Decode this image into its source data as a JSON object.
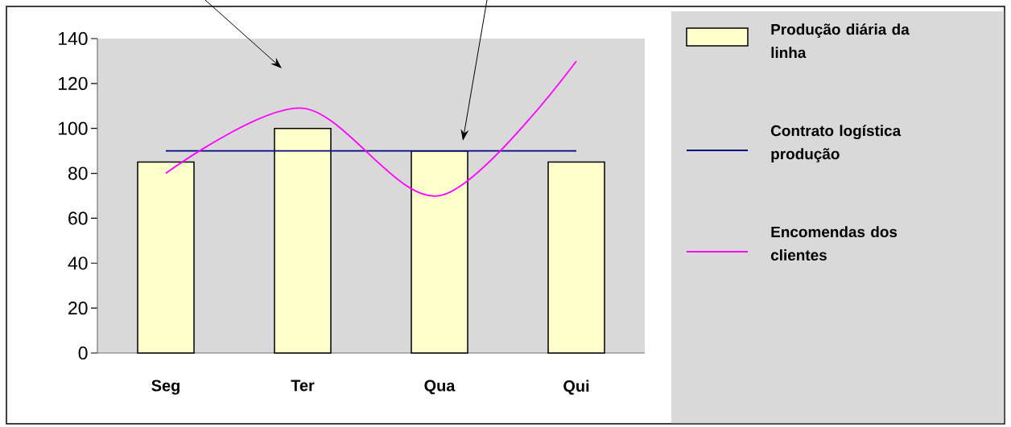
{
  "chart_data": {
    "type": "bar",
    "categories": [
      "Seg",
      "Ter",
      "Qua",
      "Qui"
    ],
    "series": [
      {
        "name": "Produção diária da linha",
        "color": "#ffffcc",
        "values": [
          85,
          100,
          90,
          85
        ]
      },
      {
        "name": "Contrato logística produção",
        "type": "line",
        "color": "#000080",
        "values": [
          90,
          90,
          90,
          90
        ]
      },
      {
        "name": "Encomendas dos clientes",
        "type": "line",
        "color": "#ff00ff",
        "values": [
          80,
          109,
          70,
          130
        ]
      }
    ],
    "ylim": [
      0,
      140
    ],
    "yticks": [
      0,
      20,
      40,
      60,
      80,
      100,
      120,
      140
    ],
    "legend": "right",
    "marker": "none"
  }
}
